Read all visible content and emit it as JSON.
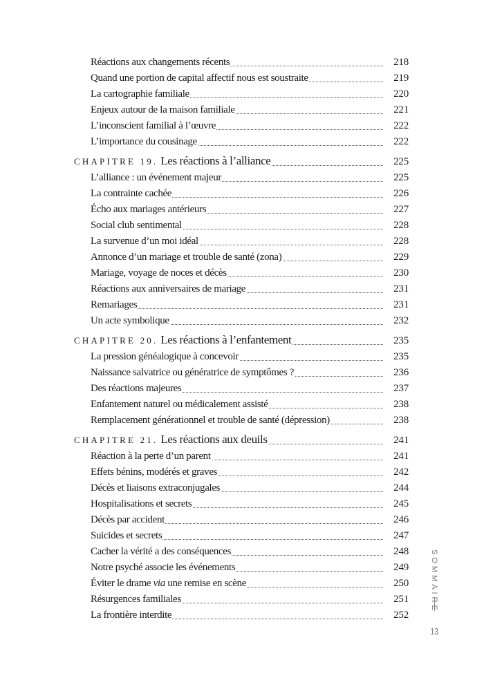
{
  "rows": [
    {
      "type": "entry",
      "title": "Réactions aux changements récents",
      "page": "218"
    },
    {
      "type": "entry",
      "title": "Quand une portion de capital affectif nous est soustraite",
      "page": "219"
    },
    {
      "type": "entry",
      "title": "La cartographie familiale",
      "page": "220"
    },
    {
      "type": "entry",
      "title": "Enjeux autour de la maison familiale",
      "page": "221"
    },
    {
      "type": "entry",
      "title": "L’inconscient familial à l’œuvre",
      "page": "222"
    },
    {
      "type": "entry",
      "title": "L’importance du cousinage",
      "page": "222"
    },
    {
      "type": "chapter",
      "label": "CHAPITRE 19.",
      "title": "Les réactions à l’alliance",
      "page": "225"
    },
    {
      "type": "entry",
      "title": "L’alliance : un événement majeur",
      "page": "225"
    },
    {
      "type": "entry",
      "title": "La contrainte cachée",
      "page": "226"
    },
    {
      "type": "entry",
      "title": "Écho aux mariages antérieurs",
      "page": "227"
    },
    {
      "type": "entry",
      "title": "Social club sentimental",
      "page": "228"
    },
    {
      "type": "entry",
      "title": "La survenue d’un moi idéal",
      "page": "228"
    },
    {
      "type": "entry",
      "title": "Annonce d’un mariage et trouble de santé (zona)",
      "page": "229"
    },
    {
      "type": "entry",
      "title": "Mariage, voyage de noces et décès",
      "page": "230"
    },
    {
      "type": "entry",
      "title": "Réactions aux anniversaires de mariage",
      "page": "231"
    },
    {
      "type": "entry",
      "title": "Remariages",
      "page": "231"
    },
    {
      "type": "entry",
      "title": "Un acte symbolique",
      "page": "232"
    },
    {
      "type": "chapter",
      "label": "CHAPITRE 20.",
      "title": "Les réactions à l’enfantement",
      "page": "235"
    },
    {
      "type": "entry",
      "title": "La pression généalogique à concevoir",
      "page": "235"
    },
    {
      "type": "entry",
      "title": "Naissance salvatrice ou génératrice de symptômes ?",
      "page": "236"
    },
    {
      "type": "entry",
      "title": "Des réactions majeures",
      "page": "237"
    },
    {
      "type": "entry",
      "title": "Enfantement naturel ou médicalement assisté",
      "page": "238"
    },
    {
      "type": "entry",
      "title": "Remplacement générationnel et trouble de santé (dépression)",
      "page": "238"
    },
    {
      "type": "chapter",
      "label": "CHAPITRE 21.",
      "title": "Les réactions aux deuils",
      "page": "241"
    },
    {
      "type": "entry",
      "title": "Réaction à la perte d’un parent",
      "page": "241"
    },
    {
      "type": "entry",
      "title": "Effets bénins, modérés et graves",
      "page": "242"
    },
    {
      "type": "entry",
      "title": "Décès et liaisons extraconjugales",
      "page": "244"
    },
    {
      "type": "entry",
      "title": "Hospitalisations et secrets",
      "page": "245"
    },
    {
      "type": "entry",
      "title": "Décès par accident",
      "page": "246"
    },
    {
      "type": "entry",
      "title": "Suicides et secrets",
      "page": "247"
    },
    {
      "type": "entry",
      "title": "Cacher la vérité a des conséquences",
      "page": "248"
    },
    {
      "type": "entry",
      "title": "Notre psyché associe les événements",
      "page": "249"
    },
    {
      "type": "entry",
      "title_before": "Éviter le drame ",
      "title_italic": "via",
      "title_after": " une remise en scène",
      "page": "250"
    },
    {
      "type": "entry",
      "title": "Résurgences familiales",
      "page": "251"
    },
    {
      "type": "entry",
      "title": "La frontière interdite",
      "page": "252"
    }
  ],
  "side": {
    "section_label": "SOMMAIRE",
    "folio": "13"
  }
}
